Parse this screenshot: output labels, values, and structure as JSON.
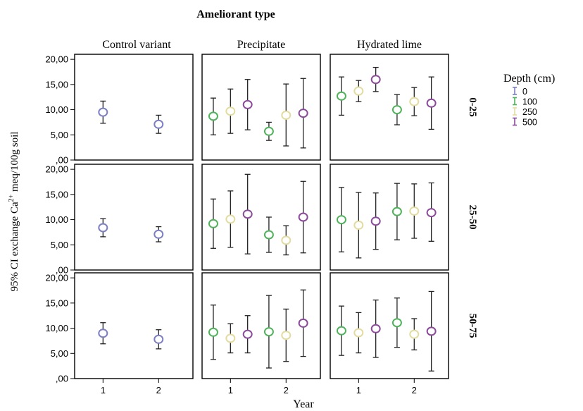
{
  "chart_data": {
    "type": "scatter",
    "title": "Ameliorant type",
    "xlabel": "Year",
    "ylabel_main": "95% CI exchange Ca",
    "ylabel_sup": "2+",
    "ylabel_tail": " meq/100g soil",
    "ylim": [
      0,
      21
    ],
    "y_ticks": [
      "20,00",
      "15,00",
      "10,00",
      "5,00",
      ",00"
    ],
    "y_tick_values": [
      20,
      15,
      10,
      5,
      0
    ],
    "x_ticks": [
      "1",
      "2"
    ],
    "columns": [
      "Control variant",
      "Precipitate",
      "Hydrated lime"
    ],
    "rows": [
      "0-25",
      "25-50",
      "50-75"
    ],
    "legend": {
      "title": "Depth (cm)",
      "placement": "right",
      "items": [
        {
          "label": "0",
          "color": "#7b7fc4"
        },
        {
          "label": "100",
          "color": "#4fb35a"
        },
        {
          "label": "250",
          "color": "#e3dca0"
        },
        {
          "label": "500",
          "color": "#8c4a9a"
        }
      ]
    },
    "panels": [
      {
        "row": 0,
        "col": 0,
        "points": [
          {
            "year": 1,
            "depth": "0",
            "mean": 9.5,
            "low": 7.3,
            "high": 11.7
          },
          {
            "year": 2,
            "depth": "0",
            "mean": 7.1,
            "low": 5.3,
            "high": 8.9
          }
        ]
      },
      {
        "row": 0,
        "col": 1,
        "points": [
          {
            "year": 1,
            "depth": "100",
            "mean": 8.7,
            "low": 5.0,
            "high": 12.3
          },
          {
            "year": 1,
            "depth": "250",
            "mean": 9.7,
            "low": 5.3,
            "high": 14.1
          },
          {
            "year": 1,
            "depth": "500",
            "mean": 11.0,
            "low": 6.0,
            "high": 16.0
          },
          {
            "year": 2,
            "depth": "100",
            "mean": 5.7,
            "low": 3.9,
            "high": 7.5
          },
          {
            "year": 2,
            "depth": "250",
            "mean": 8.9,
            "low": 2.8,
            "high": 15.1
          },
          {
            "year": 2,
            "depth": "500",
            "mean": 9.3,
            "low": 2.4,
            "high": 16.2
          }
        ]
      },
      {
        "row": 0,
        "col": 2,
        "points": [
          {
            "year": 1,
            "depth": "100",
            "mean": 12.7,
            "low": 8.9,
            "high": 16.5
          },
          {
            "year": 1,
            "depth": "250",
            "mean": 13.7,
            "low": 11.6,
            "high": 15.8
          },
          {
            "year": 1,
            "depth": "500",
            "mean": 16.0,
            "low": 13.6,
            "high": 18.4
          },
          {
            "year": 2,
            "depth": "100",
            "mean": 10.0,
            "low": 7.0,
            "high": 13.0
          },
          {
            "year": 2,
            "depth": "250",
            "mean": 11.6,
            "low": 8.8,
            "high": 14.4
          },
          {
            "year": 2,
            "depth": "500",
            "mean": 11.3,
            "low": 6.1,
            "high": 16.5
          }
        ]
      },
      {
        "row": 1,
        "col": 0,
        "points": [
          {
            "year": 1,
            "depth": "0",
            "mean": 8.4,
            "low": 6.6,
            "high": 10.2
          },
          {
            "year": 2,
            "depth": "0",
            "mean": 7.1,
            "low": 5.6,
            "high": 8.6
          }
        ]
      },
      {
        "row": 1,
        "col": 1,
        "points": [
          {
            "year": 1,
            "depth": "100",
            "mean": 9.2,
            "low": 4.3,
            "high": 14.1
          },
          {
            "year": 1,
            "depth": "250",
            "mean": 10.1,
            "low": 4.5,
            "high": 15.7
          },
          {
            "year": 1,
            "depth": "500",
            "mean": 11.1,
            "low": 3.2,
            "high": 19.0
          },
          {
            "year": 2,
            "depth": "100",
            "mean": 7.0,
            "low": 3.5,
            "high": 10.5
          },
          {
            "year": 2,
            "depth": "250",
            "mean": 5.9,
            "low": 3.0,
            "high": 8.8
          },
          {
            "year": 2,
            "depth": "500",
            "mean": 10.5,
            "low": 3.4,
            "high": 17.6
          }
        ]
      },
      {
        "row": 1,
        "col": 2,
        "points": [
          {
            "year": 1,
            "depth": "100",
            "mean": 10.0,
            "low": 3.6,
            "high": 16.4
          },
          {
            "year": 1,
            "depth": "250",
            "mean": 8.9,
            "low": 2.4,
            "high": 15.4
          },
          {
            "year": 1,
            "depth": "500",
            "mean": 9.7,
            "low": 4.1,
            "high": 15.3
          },
          {
            "year": 2,
            "depth": "100",
            "mean": 11.6,
            "low": 6.0,
            "high": 17.2
          },
          {
            "year": 2,
            "depth": "250",
            "mean": 11.7,
            "low": 6.3,
            "high": 17.1
          },
          {
            "year": 2,
            "depth": "500",
            "mean": 11.4,
            "low": 5.7,
            "high": 17.3
          }
        ]
      },
      {
        "row": 2,
        "col": 0,
        "points": [
          {
            "year": 1,
            "depth": "0",
            "mean": 9.0,
            "low": 6.9,
            "high": 11.1
          },
          {
            "year": 2,
            "depth": "0",
            "mean": 7.8,
            "low": 5.9,
            "high": 9.7
          }
        ]
      },
      {
        "row": 2,
        "col": 1,
        "points": [
          {
            "year": 1,
            "depth": "100",
            "mean": 9.2,
            "low": 3.8,
            "high": 14.6
          },
          {
            "year": 1,
            "depth": "250",
            "mean": 8.0,
            "low": 5.1,
            "high": 10.9
          },
          {
            "year": 1,
            "depth": "500",
            "mean": 8.8,
            "low": 5.1,
            "high": 12.5
          },
          {
            "year": 2,
            "depth": "100",
            "mean": 9.3,
            "low": 2.1,
            "high": 16.5
          },
          {
            "year": 2,
            "depth": "250",
            "mean": 8.6,
            "low": 3.4,
            "high": 13.8
          },
          {
            "year": 2,
            "depth": "500",
            "mean": 11.0,
            "low": 4.4,
            "high": 17.6
          }
        ]
      },
      {
        "row": 2,
        "col": 2,
        "points": [
          {
            "year": 1,
            "depth": "100",
            "mean": 9.5,
            "low": 4.6,
            "high": 14.4
          },
          {
            "year": 1,
            "depth": "250",
            "mean": 9.1,
            "low": 5.1,
            "high": 13.1
          },
          {
            "year": 1,
            "depth": "500",
            "mean": 9.9,
            "low": 4.2,
            "high": 15.6
          },
          {
            "year": 2,
            "depth": "100",
            "mean": 11.1,
            "low": 6.2,
            "high": 16.0
          },
          {
            "year": 2,
            "depth": "250",
            "mean": 8.8,
            "low": 5.7,
            "high": 11.9
          },
          {
            "year": 2,
            "depth": "500",
            "mean": 9.4,
            "low": 1.5,
            "high": 17.3
          }
        ]
      }
    ]
  }
}
